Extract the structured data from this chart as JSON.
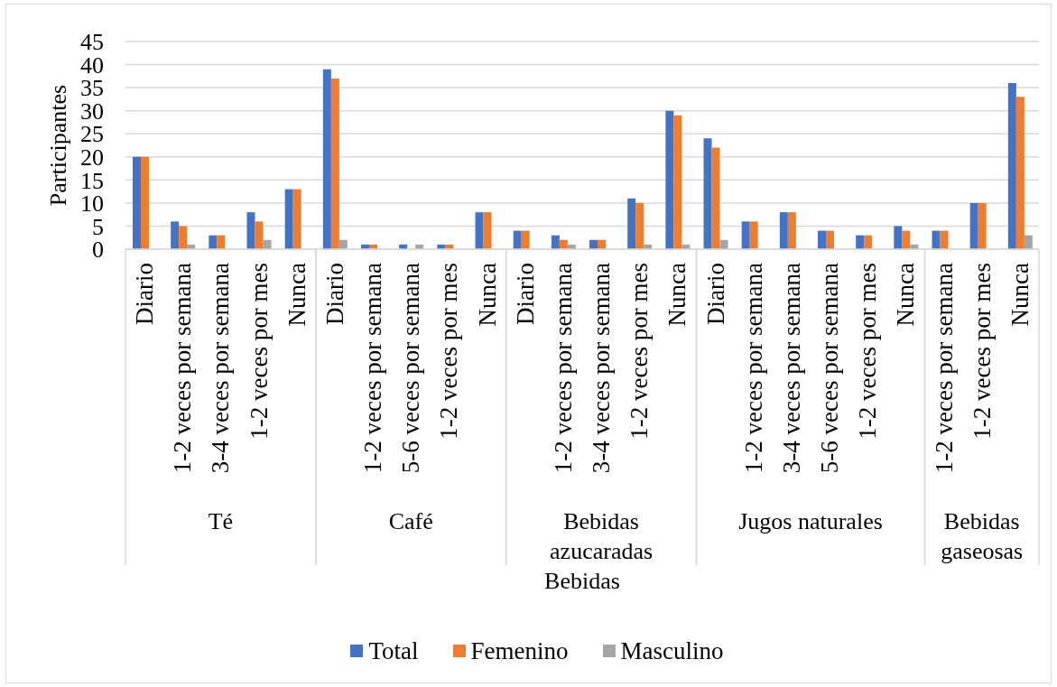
{
  "chart_data": {
    "type": "bar",
    "ylabel": "Participantes",
    "xlabel": "Bebidas",
    "categories": [
      "Diario",
      "1-2 veces por semana",
      "3-4 veces por semana",
      "1-2 veces por mes",
      "Nunca",
      "Diario",
      "1-2 veces por semana",
      "5-6 veces por semana",
      "1-2 veces por mes",
      "Nunca",
      "Diario",
      "1-2 veces por semana",
      "3-4 veces por semana",
      "1-2 veces por mes",
      "Nunca",
      "Diario",
      "1-2 veces por semana",
      "3-4 veces por semana",
      "5-6 veces por semana",
      "1-2 veces por mes",
      "Nunca",
      "1-2 veces por semana",
      "1-2 veces por mes",
      "Nunca"
    ],
    "series": [
      {
        "name": "Total",
        "color": "#4472c4",
        "values": [
          20,
          6,
          3,
          8,
          13,
          39,
          1,
          1,
          1,
          8,
          4,
          3,
          2,
          11,
          30,
          24,
          6,
          8,
          4,
          3,
          5,
          4,
          10,
          36
        ]
      },
      {
        "name": "Femenino",
        "color": "#ed7d31",
        "values": [
          20,
          5,
          3,
          6,
          13,
          37,
          1,
          0,
          1,
          8,
          4,
          2,
          2,
          10,
          29,
          22,
          6,
          8,
          4,
          3,
          4,
          4,
          10,
          33
        ]
      },
      {
        "name": "Masculino",
        "color": "#a5a5a5",
        "values": [
          0,
          1,
          0,
          2,
          0,
          2,
          0,
          1,
          0,
          0,
          0,
          1,
          0,
          1,
          1,
          2,
          0,
          0,
          0,
          0,
          1,
          0,
          0,
          3
        ]
      }
    ],
    "ylim": [
      0,
      45
    ],
    "yticks": [
      0,
      5,
      10,
      15,
      20,
      25,
      30,
      35,
      40,
      45
    ],
    "grid": "y",
    "legend": "bottom",
    "annotations": [
      "Té",
      "Café",
      "Bebidas azucaradas",
      "Jugos naturales",
      "Bebidas gaseosas"
    ]
  }
}
